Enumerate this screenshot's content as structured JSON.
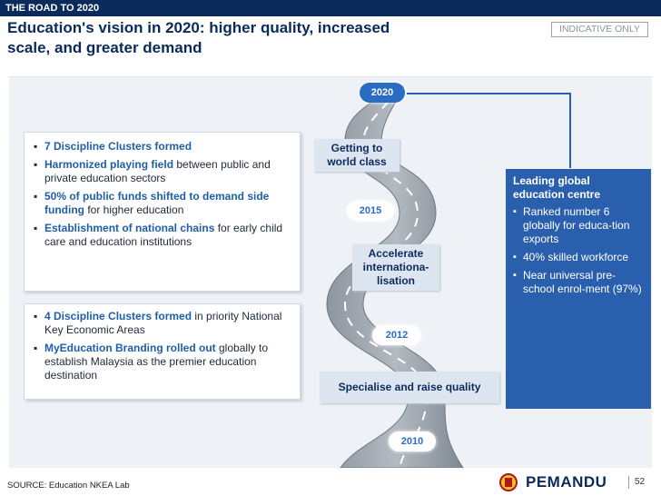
{
  "header": {
    "section": "THE ROAD TO 2020",
    "title_line1": "Education's vision in 2020: higher quality, increased",
    "title_line2": "scale, and greater demand",
    "badge": "INDICATIVE ONLY"
  },
  "box_top": [
    {
      "bold": "7 Discipline Clusters formed",
      "rest": ""
    },
    {
      "bold": "Harmonized playing field",
      "rest": " between public and private education sectors"
    },
    {
      "bold": "50% of public funds shifted to demand side funding",
      "rest": " for higher education"
    },
    {
      "bold": "Establishment of national chains",
      "rest": " for early child care and education institutions"
    }
  ],
  "box_bottom": [
    {
      "bold": "4 Discipline Clusters formed",
      "rest": " in priority National Key Economic Areas"
    },
    {
      "bold": "MyEducation Branding rolled out",
      "rest": " globally to establish Malaysia as the premier education destination"
    }
  ],
  "road": {
    "stage_top": "Getting to world class",
    "stage_mid": "Accelerate internationa-lisation",
    "stage_bottom": "Specialise and raise quality",
    "years": [
      "2020",
      "2015",
      "2012",
      "2010"
    ]
  },
  "goal": {
    "title": "Leading global education centre",
    "bullets": [
      "Ranked number 6 globally for educa-tion exports",
      "40% skilled workforce",
      "Near universal pre-school enrol-ment (97%)"
    ]
  },
  "footer": {
    "source": "SOURCE: Education NKEA Lab",
    "logo_text": "PEMANDU",
    "page": "52"
  },
  "colors": {
    "navy": "#0b2a5c",
    "blue": "#2a5fae",
    "highlight": "#1f5fa8"
  },
  "icons": [
    "road-icon",
    "crest-icon",
    "arrow-connector-icon"
  ]
}
